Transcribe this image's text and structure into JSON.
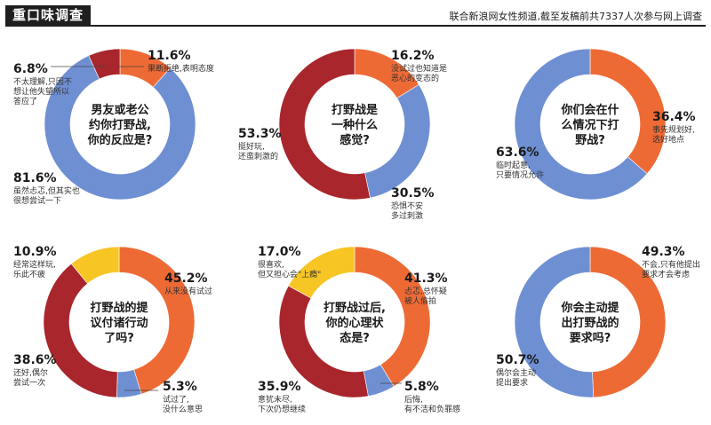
{
  "header": {
    "title": "重口味调查",
    "source": "联合新浪网女性频道,截至发稿前共7337人次参与网上调查"
  },
  "colors": {
    "orange": "#ee6a35",
    "blue": "#6f8fd3",
    "red": "#a8262c",
    "yellow": "#f7c524"
  },
  "chart_data": [
    {
      "type": "pie",
      "question": [
        "男友或老公",
        "约你打野战,",
        "你的反应是?"
      ],
      "slices": [
        {
          "value": 11.6,
          "label": "11.6%",
          "desc": [
            "果断拒绝,表明态度"
          ],
          "color": "orange"
        },
        {
          "value": 81.6,
          "label": "81.6%",
          "desc": [
            "虽然忐忑,但其实也",
            "很想尝试一下"
          ],
          "color": "blue"
        },
        {
          "value": 6.8,
          "label": "6.8%",
          "desc": [
            "不太理解,只因不",
            "想让他失望所以",
            "答应了"
          ],
          "color": "red"
        }
      ]
    },
    {
      "type": "pie",
      "question": [
        "打野战是",
        "一种什么",
        "感觉?"
      ],
      "slices": [
        {
          "value": 16.2,
          "label": "16.2%",
          "desc": [
            "没试过也知道是",
            "恶心的变态的"
          ],
          "color": "orange"
        },
        {
          "value": 30.5,
          "label": "30.5%",
          "desc": [
            "恐惧不安",
            "多过刺激"
          ],
          "color": "blue"
        },
        {
          "value": 53.3,
          "label": "53.3%",
          "desc": [
            "挺好玩,",
            "还蛮刺激的"
          ],
          "color": "red"
        }
      ]
    },
    {
      "type": "pie",
      "question": [
        "你们会在什",
        "么情况下打",
        "野战?"
      ],
      "slices": [
        {
          "value": 36.4,
          "label": "36.4%",
          "desc": [
            "事先规划好,",
            "选好地点"
          ],
          "color": "orange"
        },
        {
          "value": 63.6,
          "label": "63.6%",
          "desc": [
            "临时起意,",
            "只要情况允许"
          ],
          "color": "blue"
        }
      ]
    },
    {
      "type": "pie",
      "question": [
        "打野战的提",
        "议付诸行动",
        "了吗?"
      ],
      "slices": [
        {
          "value": 45.2,
          "label": "45.2%",
          "desc": [
            "从来没有试过"
          ],
          "color": "orange"
        },
        {
          "value": 5.3,
          "label": "5.3%",
          "desc": [
            "试过了,",
            "没什么意思"
          ],
          "color": "blue"
        },
        {
          "value": 38.6,
          "label": "38.6%",
          "desc": [
            "还好,偶尔",
            "尝试一次"
          ],
          "color": "red"
        },
        {
          "value": 10.9,
          "label": "10.9%",
          "desc": [
            "经常这样玩,",
            "乐此不疲"
          ],
          "color": "yellow"
        }
      ]
    },
    {
      "type": "pie",
      "question": [
        "打野战过后,",
        "你的心理状",
        "态是?"
      ],
      "slices": [
        {
          "value": 41.3,
          "label": "41.3%",
          "desc": [
            "忐忑,总怀疑",
            "被人偷拍"
          ],
          "color": "orange"
        },
        {
          "value": 5.8,
          "label": "5.8%",
          "desc": [
            "后悔,",
            "有不洁和负罪感"
          ],
          "color": "blue"
        },
        {
          "value": 35.9,
          "label": "35.9%",
          "desc": [
            "意犹未尽,",
            "下次仍想继续"
          ],
          "color": "red"
        },
        {
          "value": 17.0,
          "label": "17.0%",
          "desc": [
            "很喜欢,",
            "但又担心会\"上瘾\""
          ],
          "color": "yellow"
        }
      ]
    },
    {
      "type": "pie",
      "question": [
        "你会主动提",
        "出打野战的",
        "要求吗?"
      ],
      "slices": [
        {
          "value": 49.3,
          "label": "49.3%",
          "desc": [
            "不会,只有他提出",
            "要求才会考虑"
          ],
          "color": "orange"
        },
        {
          "value": 50.7,
          "label": "50.7%",
          "desc": [
            "偶尔会主动",
            "提出要求"
          ],
          "color": "blue"
        }
      ]
    }
  ]
}
